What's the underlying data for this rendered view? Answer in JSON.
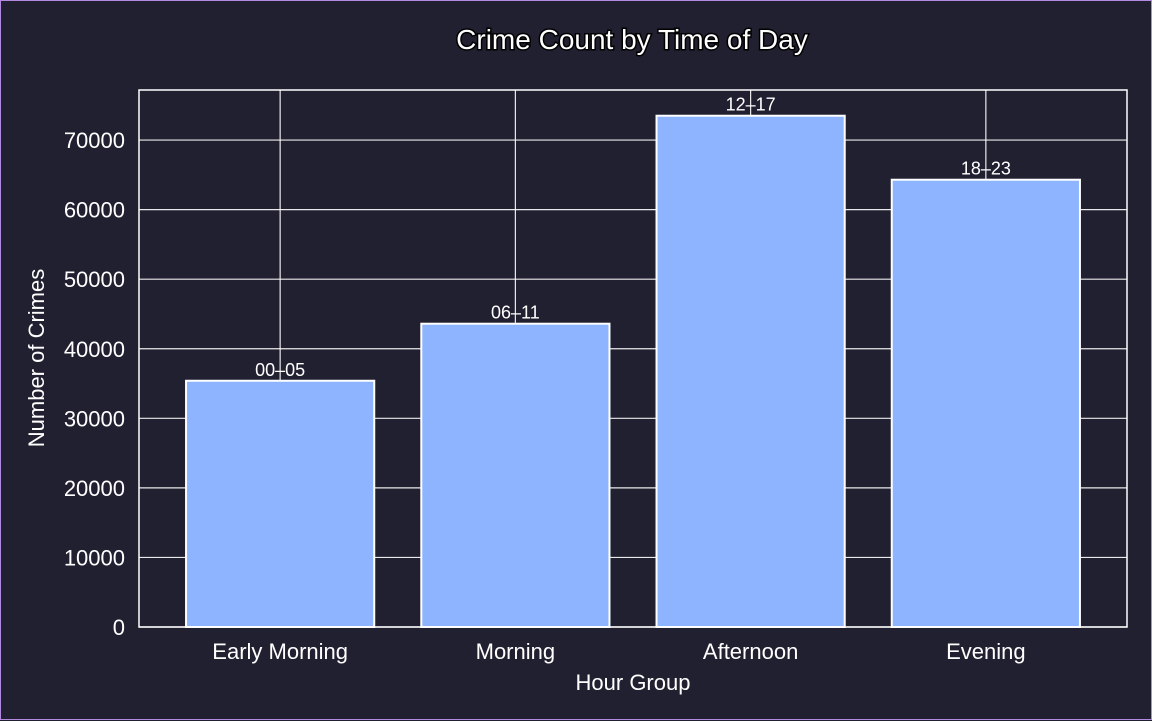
{
  "chart_data": {
    "type": "bar",
    "title": "Crime Count by Time of Day",
    "xlabel": "Hour Group",
    "ylabel": "Number of Crimes",
    "categories": [
      "Early Morning",
      "Morning",
      "Afternoon",
      "Evening"
    ],
    "values": [
      35400,
      43600,
      73500,
      64300
    ],
    "bar_labels": [
      "00–05",
      "06–11",
      "12–17",
      "18–23"
    ],
    "yticks": [
      0,
      10000,
      20000,
      30000,
      40000,
      50000,
      60000,
      70000
    ],
    "ylim": [
      0,
      77200
    ],
    "grid": true,
    "bar_color": "#8eb4ff",
    "background_color": "#212030",
    "frame_color": "#b48ae0"
  }
}
